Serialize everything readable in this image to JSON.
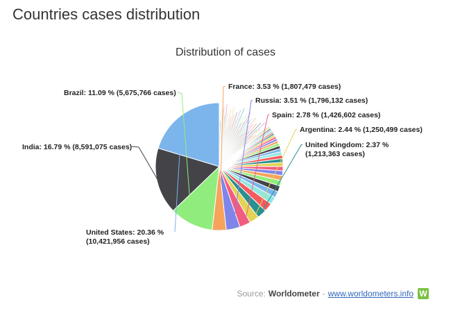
{
  "page": {
    "heading": "Countries cases distribution"
  },
  "source": {
    "prefix": "Source:",
    "brand": "Worldometer",
    "separator": "-",
    "link": "www.worldometers.info",
    "logo_letter": "W"
  },
  "chart_data": {
    "type": "pie",
    "title": "Distribution of cases",
    "slices": [
      {
        "name": "United States",
        "percent": 20.36,
        "cases": "10,421,956",
        "color": "#7cb5ec"
      },
      {
        "name": "India",
        "percent": 16.79,
        "cases": "8,591,075",
        "color": "#434348"
      },
      {
        "name": "Brazil",
        "percent": 11.09,
        "cases": "5,675,766",
        "color": "#90ed7d"
      },
      {
        "name": "France",
        "percent": 3.53,
        "cases": "1,807,479",
        "color": "#f7a35c"
      },
      {
        "name": "Russia",
        "percent": 3.51,
        "cases": "1,796,132",
        "color": "#8085e9"
      },
      {
        "name": "Spain",
        "percent": 2.78,
        "cases": "1,426,602",
        "color": "#f15c80"
      },
      {
        "name": "Argentina",
        "percent": 2.44,
        "cases": "1,250,499",
        "color": "#e4d354"
      },
      {
        "name": "United Kingdom",
        "percent": 2.37,
        "cases": "1,213,363",
        "color": "#2b908f"
      }
    ],
    "labels": [
      {
        "country": "United States",
        "line1": "United States: 20.36 % ",
        "line2": "(10,421,956 cases)"
      },
      {
        "country": "India",
        "line1": "India: 16.79 % (8,591,075 cases)"
      },
      {
        "country": "Brazil",
        "line1": "Brazil: 11.09 % (5,675,766 cases)"
      },
      {
        "country": "France",
        "line1": "France: 3.53 % (1,807,479 cases)"
      },
      {
        "country": "Russia",
        "line1": "Russia: 3.51 % (1,796,132 cases)"
      },
      {
        "country": "Spain",
        "line1": "Spain: 2.78 % (1,426,602 cases)"
      },
      {
        "country": "Argentina",
        "line1": "Argentina: 2.44 % (1,250,499 cases)"
      },
      {
        "country": "United Kingdom",
        "line1": "United Kingdom: 2.37 %",
        "line2": "(1,213,363 cases)"
      }
    ],
    "palette": [
      "#7cb5ec",
      "#434348",
      "#90ed7d",
      "#f7a35c",
      "#8085e9",
      "#f15c80",
      "#e4d354",
      "#2b908f",
      "#f45b5b",
      "#91e8e1"
    ],
    "legend": "none"
  }
}
